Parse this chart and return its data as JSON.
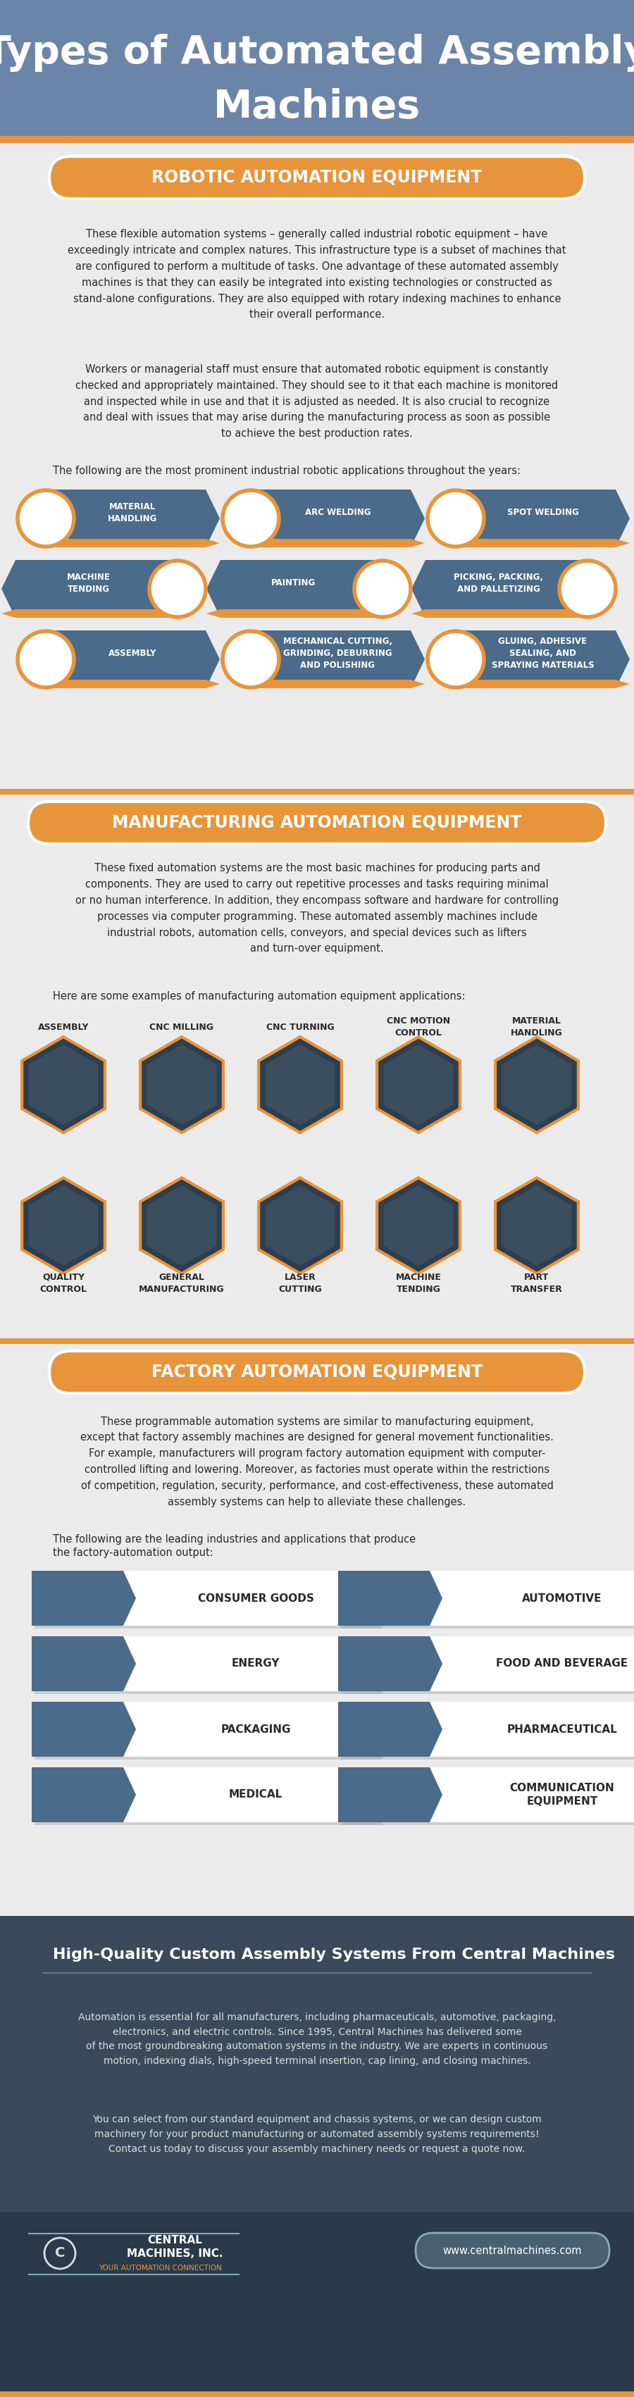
{
  "title_line1": "Types of Automated Assembly",
  "title_line2": "Machines",
  "title_bg_color": "#6b85a8",
  "accent_color": "#e8943a",
  "light_bg": "#ebebeb",
  "dark_blue": "#4a6b8a",
  "white": "#ffffff",
  "dark_text": "#2a2a2a",
  "footer_bg": "#3a4a5a",
  "footer_bottom_bg": "#2a3a4a",
  "section1_title": "ROBOTIC AUTOMATION EQUIPMENT",
  "section1_text1": "These flexible automation systems – generally called industrial robotic equipment – have\nexceedingly intricate and complex natures. This infrastructure type is a subset of machines that\nare configured to perform a multitude of tasks. One advantage of these automated assembly\nmachines is that they can easily be integrated into existing technologies or constructed as\nstand-alone configurations. They are also equipped with rotary indexing machines to enhance\ntheir overall performance.",
  "section1_text2": "Workers or managerial staff must ensure that automated robotic equipment is constantly\nchecked and appropriately maintained. They should see to it that each machine is monitored\nand inspected while in use and that it is adjusted as needed. It is also crucial to recognize\nand deal with issues that may arise during the manufacturing process as soon as possible\nto achieve the best production rates.",
  "section1_text3": "The following are the most prominent industrial robotic applications throughout the years:",
  "robotic_items_row1": [
    "MATERIAL\nHANDLING",
    "ARC WELDING",
    "SPOT WELDING"
  ],
  "robotic_items_row2_left": [
    "MACHINE\nTENDING",
    "PAINTING",
    "PICKING, PACKING,\nAND PALLETIZING"
  ],
  "robotic_items_row3": [
    "ASSEMBLY",
    "MECHANICAL CUTTING,\nGRINDING, DEBURRING\nAND POLISHING",
    "GLUING, ADHESIVE\nSEALING, AND\nSPRAYING MATERIALS"
  ],
  "section2_title": "MANUFACTURING AUTOMATION EQUIPMENT",
  "section2_text1": "These fixed automation systems are the most basic machines for producing parts and\ncomponents. They are used to carry out repetitive processes and tasks requiring minimal\nor no human interference. In addition, they encompass software and hardware for controlling\nprocesses via computer programming. These automated assembly machines include\nindustrial robots, automation cells, conveyors, and special devices such as lifters\nand turn-over equipment.",
  "section2_text2": "Here are some examples of manufacturing automation equipment applications:",
  "mfg_labels_row1": [
    "ASSEMBLY",
    "CNC MILLING",
    "CNC TURNING",
    "CNC MOTION\nCONTROL",
    "MATERIAL\nHANDLING"
  ],
  "mfg_labels_row2": [
    "QUALITY\nCONTROL",
    "GENERAL\nMANUFACTURING",
    "LASER\nCUTTING",
    "MACHINE\nTENDING",
    "PART\nTRANSFER"
  ],
  "section3_title": "FACTORY AUTOMATION EQUIPMENT",
  "section3_text1": "These programmable automation systems are similar to manufacturing equipment,\nexcept that factory assembly machines are designed for general movement functionalities.\nFor example, manufacturers will program factory automation equipment with computer-\ncontrolled lifting and lowering. Moreover, as factories must operate within the restrictions\nof competition, regulation, security, performance, and cost-effectiveness, these automated\nassembly systems can help to alleviate these challenges.",
  "section3_text2": "The following are the leading industries and applications that produce\nthe factory-automation output:",
  "factory_items": [
    "CONSUMER GOODS",
    "AUTOMOTIVE",
    "ENERGY",
    "FOOD AND BEVERAGE",
    "PACKAGING",
    "PHARMACEUTICAL",
    "MEDICAL",
    "COMMUNICATION\nEQUIPMENT"
  ],
  "footer_title": "High-Quality Custom Assembly Systems From Central Machines",
  "footer_text1": "Automation is essential for all manufacturers, including pharmaceuticals, automotive, packaging,\nelectronics, and electric controls. Since 1995, Central Machines has delivered some\nof the most groundbreaking automation systems in the industry. We are experts in continuous\nmotion, indexing dials, high-speed terminal insertion, cap lining, and closing machines.",
  "footer_text2": "You can select from our standard equipment and chassis systems, or we can design custom\nmachinery for your product manufacturing or automated assembly systems requirements!\nContact us today to discuss your assembly machinery needs or request a quote now.",
  "website": "www.centralmachines.com",
  "logo_text1": "CENTRAL",
  "logo_text2": "MACHINES, INC.",
  "logo_sub": "YOUR AUTOMATION CONNECTION"
}
